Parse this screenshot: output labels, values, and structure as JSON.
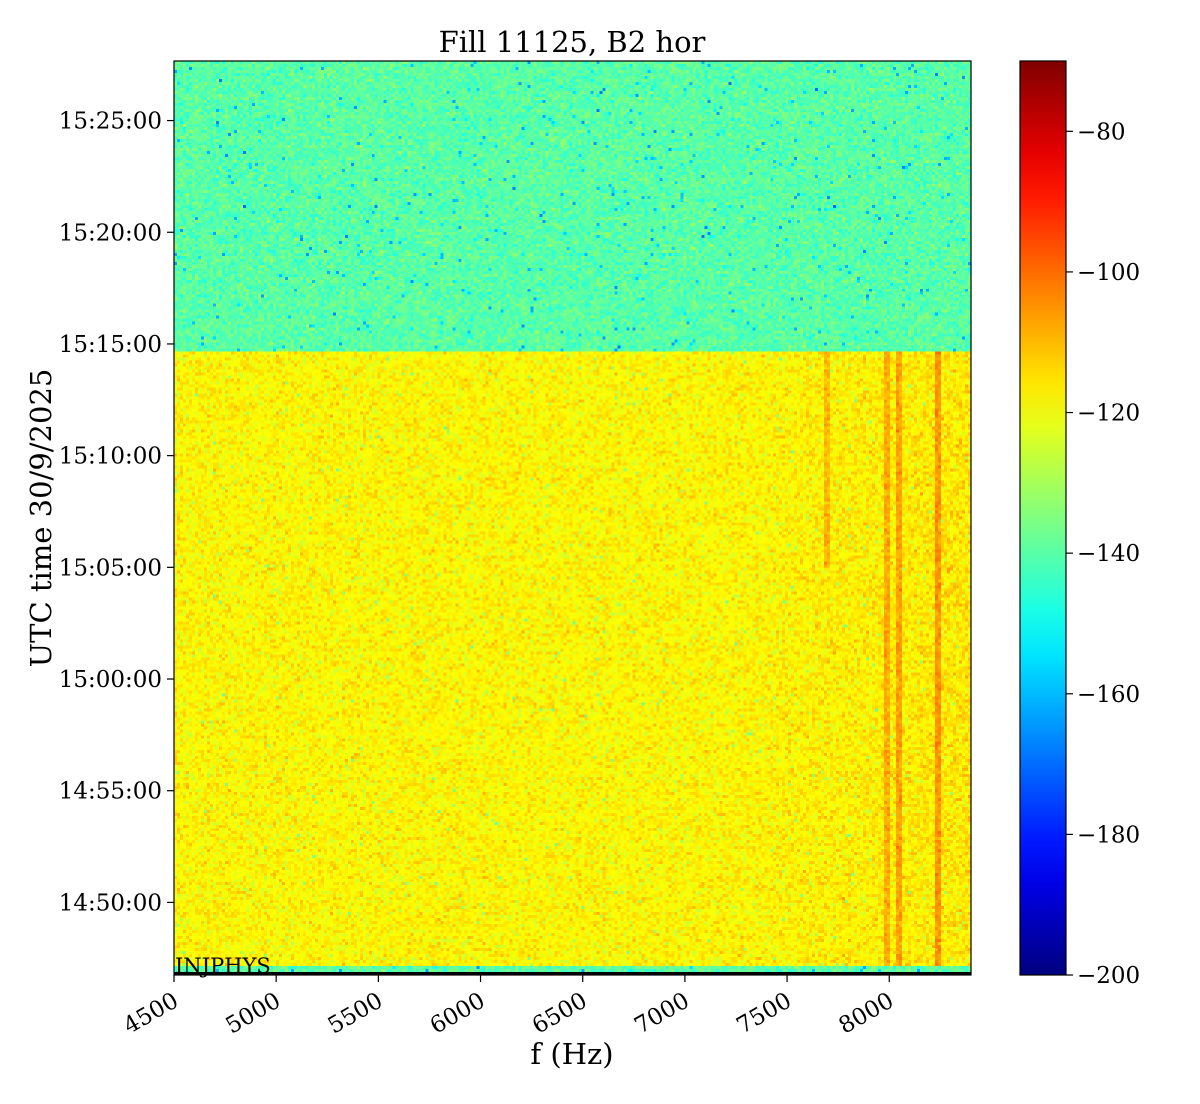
{
  "chart_data": {
    "type": "heatmap",
    "title": "Fill 11125, B2 hor",
    "xlabel": "f (Hz)",
    "ylabel": "UTC time 30/9/2025",
    "xlim": [
      4500,
      8400
    ],
    "x_ticks": [
      4500,
      5000,
      5500,
      6000,
      6500,
      7000,
      7500,
      8000
    ],
    "x_tick_labels": [
      "4500",
      "5000",
      "5500",
      "6000",
      "6500",
      "7000",
      "7500",
      "8000"
    ],
    "ylim": [
      "14:46:45",
      "15:27:40"
    ],
    "y_ticks": [
      "14:50:00",
      "14:55:00",
      "15:00:00",
      "15:05:00",
      "15:10:00",
      "15:15:00",
      "15:20:00",
      "15:25:00"
    ],
    "y_tick_labels": [
      "14:50:00",
      "14:55:00",
      "15:00:00",
      "15:05:00",
      "15:10:00",
      "15:15:00",
      "15:20:00",
      "15:25:00"
    ],
    "colormap": "jet",
    "colorbar": {
      "vmin": -200,
      "vmax": -70,
      "ticks": [
        -200,
        -180,
        -160,
        -140,
        -120,
        -100,
        -80
      ],
      "tick_labels": [
        "−200",
        "−180",
        "−160",
        "−140",
        "−120",
        "−100",
        "−80"
      ]
    },
    "regions": [
      {
        "time_start": "14:46:45",
        "time_end": "14:47:05",
        "level": -140,
        "note": "INJPHYS"
      },
      {
        "time_start": "14:47:05",
        "time_end": "15:14:35",
        "level": -118
      },
      {
        "time_start": "15:14:35",
        "time_end": "15:27:40",
        "level": -140
      }
    ],
    "features": [
      {
        "type": "vertical_line",
        "f": 8250,
        "time_start": "14:47:05",
        "time_end": "15:14:35",
        "level": -105
      },
      {
        "type": "vertical_line",
        "f": 8050,
        "time_start": "14:47:05",
        "time_end": "15:14:35",
        "level": -107
      },
      {
        "type": "vertical_line",
        "f": 8000,
        "time_start": "14:47:05",
        "time_end": "15:14:35",
        "level": -108
      },
      {
        "type": "vertical_line",
        "f": 7700,
        "time_start": "15:05:00",
        "time_end": "15:14:35",
        "level": -110
      }
    ],
    "annotations": [
      {
        "text": "INJPHYS",
        "time": "14:47:05",
        "f": 4500
      }
    ]
  },
  "colors": {
    "background": "#ffffff",
    "axis": "#000000"
  }
}
